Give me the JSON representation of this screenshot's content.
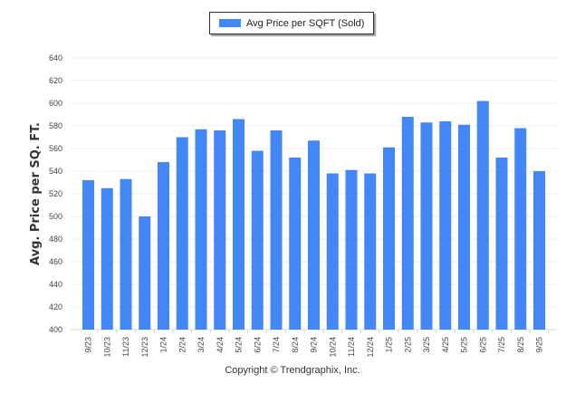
{
  "chart_data": {
    "type": "bar",
    "title": "",
    "legend": {
      "entries": [
        "Avg Price per SQFT (Sold)"
      ],
      "placement": "top-center"
    },
    "ylabel": "Avg. Price per SQ. FT.",
    "xlabel": "",
    "ylim": [
      400,
      640
    ],
    "yticks": [
      400,
      420,
      440,
      460,
      480,
      500,
      520,
      540,
      560,
      580,
      600,
      620,
      640
    ],
    "grid": true,
    "bar_color": "#4287f5",
    "categories": [
      "9/23",
      "10/23",
      "11/23",
      "12/23",
      "1/24",
      "2/24",
      "3/24",
      "4/24",
      "5/24",
      "6/24",
      "7/24",
      "8/24",
      "9/24",
      "10/24",
      "11/24",
      "12/24",
      "1/25",
      "2/25",
      "3/25",
      "4/25",
      "5/25",
      "6/25",
      "7/25",
      "8/25",
      "9/25"
    ],
    "series": [
      {
        "name": "Avg Price per SQFT (Sold)",
        "values": [
          532,
          525,
          533,
          500,
          548,
          570,
          577,
          576,
          586,
          558,
          576,
          552,
          567,
          538,
          541,
          538,
          561,
          588,
          583,
          584,
          581,
          602,
          552,
          578,
          540
        ]
      }
    ]
  },
  "footer": {
    "copyright": "Copyright © Trendgraphix, Inc."
  }
}
